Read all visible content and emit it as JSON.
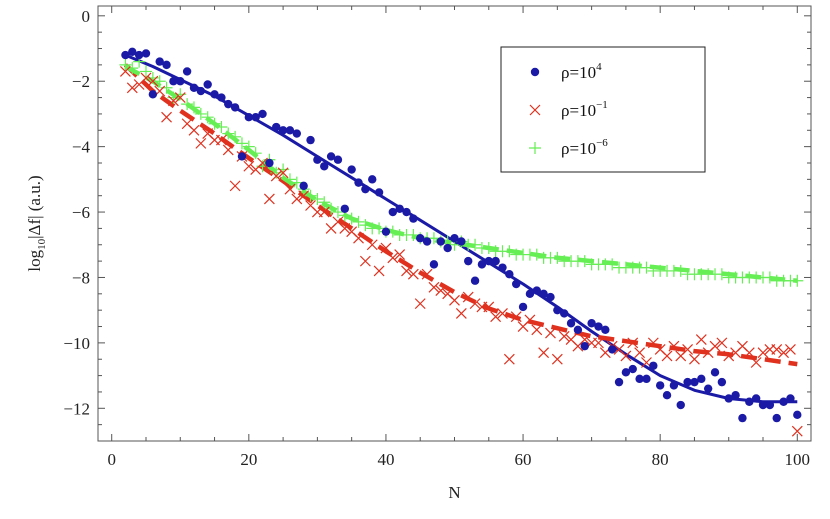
{
  "chart_data": {
    "type": "scatter",
    "xlabel": "N",
    "ylabel": "log10|Δf| (a.u.)",
    "ylabel_parts": {
      "prefix": "log",
      "sub": "10",
      "suffix": "|Δf| (a.u.)"
    },
    "xlim": [
      -2,
      102
    ],
    "ylim": [
      -13,
      0.3
    ],
    "xticks": [
      0,
      20,
      40,
      60,
      80,
      100
    ],
    "yticks": [
      0,
      -2,
      -4,
      -6,
      -8,
      -10,
      -12
    ],
    "xtick_labels": [
      "0",
      "20",
      "40",
      "60",
      "80",
      "100"
    ],
    "ytick_labels": [
      "0",
      "−2",
      "−4",
      "−6",
      "−8",
      "−10",
      "−12"
    ],
    "legend_position": "top-right",
    "series": [
      {
        "name": "ρ=10^4",
        "label": {
          "base": "ρ=10",
          "exp": "4"
        },
        "color": "#1a1aa6",
        "marker": "circle",
        "fit_style": "solid",
        "x": [
          2,
          3,
          4,
          5,
          6,
          7,
          8,
          9,
          10,
          11,
          12,
          13,
          14,
          15,
          16,
          17,
          18,
          19,
          20,
          21,
          22,
          23,
          24,
          25,
          26,
          27,
          28,
          29,
          30,
          31,
          32,
          33,
          34,
          35,
          36,
          37,
          38,
          39,
          40,
          41,
          42,
          43,
          44,
          45,
          46,
          47,
          48,
          49,
          50,
          51,
          52,
          53,
          54,
          55,
          56,
          57,
          58,
          59,
          60,
          61,
          62,
          63,
          64,
          65,
          66,
          67,
          68,
          69,
          70,
          71,
          72,
          73,
          74,
          75,
          76,
          77,
          78,
          79,
          80,
          81,
          82,
          83,
          84,
          85,
          86,
          87,
          88,
          89,
          90,
          91,
          92,
          93,
          94,
          95,
          96,
          97,
          98,
          99,
          100
        ],
        "y": [
          -1.2,
          -1.1,
          -1.2,
          -1.15,
          -2.4,
          -1.4,
          -1.5,
          -2.0,
          -2.0,
          -1.7,
          -2.2,
          -2.3,
          -2.1,
          -2.4,
          -2.5,
          -2.7,
          -2.8,
          -4.3,
          -3.1,
          -3.1,
          -3.0,
          -4.5,
          -3.4,
          -3.5,
          -3.5,
          -3.6,
          -5.2,
          -3.8,
          -4.4,
          -4.6,
          -4.3,
          -4.4,
          -5.9,
          -4.7,
          -5.1,
          -5.3,
          -5.0,
          -5.4,
          -6.6,
          -6.0,
          -5.9,
          -6.0,
          -6.2,
          -6.8,
          -6.9,
          -7.6,
          -6.9,
          -7.1,
          -6.8,
          -6.9,
          -7.5,
          -8.1,
          -7.6,
          -7.5,
          -7.5,
          -7.7,
          -7.9,
          -8.2,
          -8.9,
          -8.5,
          -8.4,
          -8.5,
          -8.6,
          -9.0,
          -9.1,
          -9.4,
          -9.6,
          -10.1,
          -9.4,
          -9.5,
          -9.6,
          -10.2,
          -11.2,
          -10.9,
          -10.8,
          -11.1,
          -11.1,
          -10.7,
          -11.3,
          -11.6,
          -11.3,
          -11.9,
          -11.2,
          -11.2,
          -11.1,
          -11.4,
          -10.9,
          -11.2,
          -11.7,
          -11.6,
          -12.3,
          -11.8,
          -11.7,
          -11.9,
          -11.9,
          -12.3,
          -11.8,
          -11.7,
          -12.2
        ]
      },
      {
        "name": "ρ=10^-1",
        "label": {
          "base": "ρ=10",
          "exp": "−1"
        },
        "color": "#e0301e",
        "marker": "cross",
        "fit_style": "dashed",
        "x": [
          2,
          3,
          4,
          5,
          6,
          7,
          8,
          9,
          10,
          11,
          12,
          13,
          14,
          15,
          16,
          17,
          18,
          19,
          20,
          21,
          22,
          23,
          24,
          25,
          26,
          27,
          28,
          29,
          30,
          31,
          32,
          33,
          34,
          35,
          36,
          37,
          38,
          39,
          40,
          41,
          42,
          43,
          44,
          45,
          46,
          47,
          48,
          49,
          50,
          51,
          52,
          53,
          54,
          55,
          56,
          57,
          58,
          59,
          60,
          61,
          62,
          63,
          64,
          65,
          66,
          67,
          68,
          69,
          70,
          71,
          72,
          73,
          74,
          75,
          76,
          77,
          78,
          79,
          80,
          81,
          82,
          83,
          84,
          85,
          86,
          87,
          88,
          89,
          90,
          91,
          92,
          93,
          94,
          95,
          96,
          97,
          98,
          99,
          100
        ],
        "y": [
          -1.7,
          -2.2,
          -2.1,
          -1.9,
          -2.0,
          -2.3,
          -3.1,
          -2.6,
          -2.5,
          -3.3,
          -3.5,
          -3.9,
          -3.6,
          -3.8,
          -3.8,
          -4.1,
          -5.2,
          -4.3,
          -4.6,
          -4.7,
          -4.5,
          -5.6,
          -4.9,
          -4.8,
          -5.3,
          -5.6,
          -5.5,
          -5.8,
          -6.0,
          -6.0,
          -6.5,
          -6.3,
          -6.5,
          -6.6,
          -6.8,
          -7.5,
          -7.0,
          -7.8,
          -7.1,
          -7.4,
          -7.3,
          -7.8,
          -7.9,
          -8.8,
          -7.9,
          -8.3,
          -8.4,
          -8.5,
          -8.7,
          -9.1,
          -8.6,
          -8.8,
          -8.9,
          -8.9,
          -9.2,
          -9.1,
          -10.5,
          -9.2,
          -9.5,
          -9.3,
          -9.6,
          -10.3,
          -9.7,
          -10.5,
          -9.8,
          -9.9,
          -10.1,
          -9.9,
          -10.0,
          -10.0,
          -10.3,
          -10.1,
          -10.2,
          -10.4,
          -10.0,
          -10.3,
          -10.6,
          -10.0,
          -10.2,
          -10.4,
          -10.1,
          -10.4,
          -10.2,
          -10.5,
          -9.9,
          -10.3,
          -10.1,
          -10.0,
          -10.4,
          -10.3,
          -10.1,
          -10.3,
          -10.6,
          -10.3,
          -10.2,
          -10.2,
          -10.3,
          -10.2,
          -12.7
        ]
      },
      {
        "name": "ρ=10^-6",
        "label": {
          "base": "ρ=10",
          "exp": "−6"
        },
        "color": "#66ee55",
        "marker": "plus",
        "fit_style": "dashed",
        "x": [
          2,
          3,
          4,
          5,
          6,
          7,
          8,
          9,
          10,
          11,
          12,
          13,
          14,
          15,
          16,
          17,
          18,
          19,
          20,
          21,
          22,
          23,
          24,
          25,
          26,
          27,
          28,
          29,
          30,
          31,
          32,
          33,
          34,
          35,
          36,
          37,
          38,
          39,
          40,
          41,
          42,
          43,
          44,
          45,
          46,
          47,
          48,
          49,
          50,
          51,
          52,
          53,
          54,
          55,
          56,
          57,
          58,
          59,
          60,
          61,
          62,
          63,
          64,
          65,
          66,
          67,
          68,
          69,
          70,
          71,
          72,
          73,
          74,
          75,
          76,
          77,
          78,
          79,
          80,
          81,
          82,
          83,
          84,
          85,
          86,
          87,
          88,
          89,
          90,
          91,
          92,
          93,
          94,
          95,
          96,
          97,
          98,
          99,
          100
        ],
        "y": [
          -1.5,
          -1.6,
          -1.4,
          -1.7,
          -1.9,
          -2.0,
          -2.2,
          -2.5,
          -2.4,
          -2.7,
          -2.8,
          -3.0,
          -3.1,
          -3.3,
          -3.4,
          -3.6,
          -3.7,
          -3.9,
          -4.0,
          -4.2,
          -4.6,
          -4.4,
          -4.8,
          -4.7,
          -5.0,
          -5.1,
          -5.3,
          -5.5,
          -5.6,
          -5.7,
          -5.9,
          -6.0,
          -6.1,
          -6.2,
          -6.3,
          -6.4,
          -6.5,
          -6.5,
          -6.6,
          -6.6,
          -6.7,
          -6.7,
          -6.7,
          -6.8,
          -6.8,
          -6.8,
          -6.9,
          -6.9,
          -7.0,
          -6.9,
          -7.0,
          -7.0,
          -7.1,
          -7.1,
          -7.2,
          -7.2,
          -7.2,
          -7.3,
          -7.3,
          -7.3,
          -7.3,
          -7.4,
          -7.4,
          -7.4,
          -7.5,
          -7.5,
          -7.5,
          -7.5,
          -7.6,
          -7.6,
          -7.6,
          -7.6,
          -7.7,
          -7.7,
          -7.7,
          -7.7,
          -7.7,
          -7.8,
          -7.8,
          -7.8,
          -7.8,
          -7.8,
          -7.9,
          -7.9,
          -7.9,
          -7.9,
          -7.9,
          -7.9,
          -8.0,
          -8.0,
          -8.0,
          -8.0,
          -8.0,
          -8.0,
          -8.0,
          -8.1,
          -8.1,
          -8.1,
          -8.1
        ]
      }
    ],
    "fits": [
      {
        "series": "ρ=10^4",
        "color": "#1a1aa6",
        "style": "solid",
        "x": [
          2,
          6,
          10,
          15,
          20,
          25,
          30,
          35,
          40,
          45,
          50,
          55,
          60,
          65,
          70,
          75,
          80,
          85,
          90,
          95,
          100
        ],
        "y": [
          -1.2,
          -1.55,
          -1.95,
          -2.45,
          -3.05,
          -3.65,
          -4.3,
          -4.95,
          -5.6,
          -6.25,
          -6.9,
          -7.55,
          -8.2,
          -8.9,
          -9.65,
          -10.35,
          -11.0,
          -11.45,
          -11.7,
          -11.8,
          -11.8
        ]
      },
      {
        "series": "ρ=10^-1",
        "color": "#e0301e",
        "style": "dashed",
        "x": [
          2,
          6,
          10,
          15,
          20,
          25,
          30,
          35,
          40,
          45,
          50,
          55,
          60,
          65,
          70,
          75,
          80,
          85,
          90,
          95,
          100
        ],
        "y": [
          -1.5,
          -2.3,
          -2.9,
          -3.6,
          -4.35,
          -5.05,
          -5.8,
          -6.5,
          -7.2,
          -7.85,
          -8.45,
          -8.95,
          -9.3,
          -9.55,
          -9.8,
          -9.95,
          -10.1,
          -10.25,
          -10.35,
          -10.5,
          -10.65
        ]
      },
      {
        "series": "ρ=10^-6",
        "color": "#66ee55",
        "style": "dashed",
        "x": [
          2,
          6,
          10,
          15,
          20,
          25,
          30,
          35,
          40,
          45,
          50,
          55,
          60,
          65,
          70,
          75,
          80,
          85,
          90,
          95,
          100
        ],
        "y": [
          -1.55,
          -2.0,
          -2.55,
          -3.3,
          -4.1,
          -4.95,
          -5.65,
          -6.2,
          -6.55,
          -6.8,
          -6.95,
          -7.1,
          -7.25,
          -7.4,
          -7.5,
          -7.6,
          -7.7,
          -7.8,
          -7.9,
          -8.0,
          -8.1
        ]
      }
    ]
  }
}
